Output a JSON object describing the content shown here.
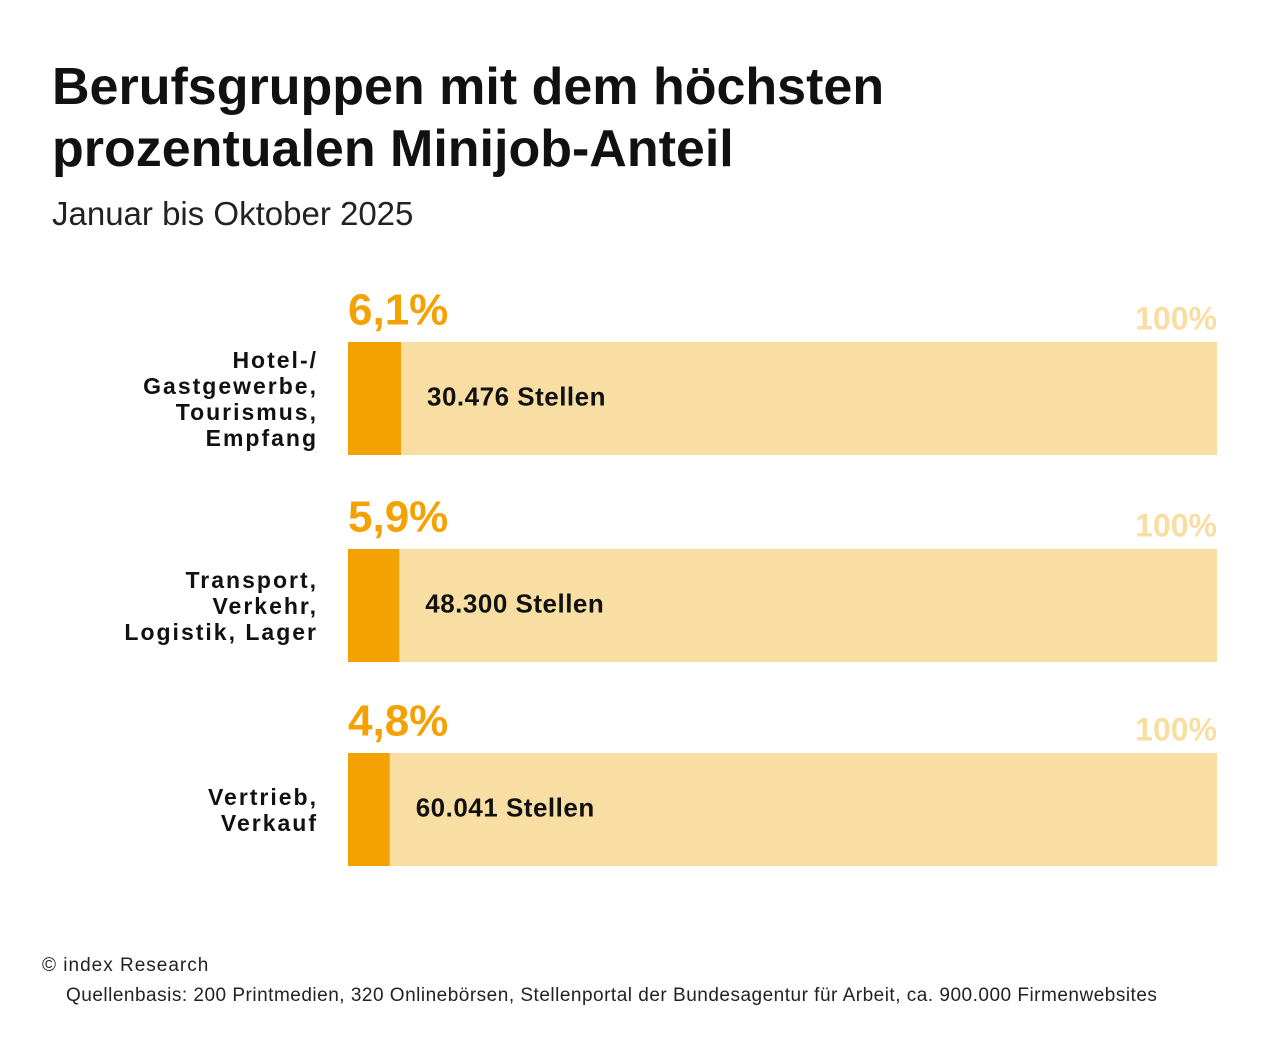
{
  "chart_data": {
    "type": "bar",
    "orientation": "horizontal",
    "title": "Berufsgruppen mit dem höchsten prozentualen Minijob-Anteil",
    "subtitle": "Januar bis Oktober 2025",
    "categories": [
      "Hotel-/\nGastgewerbe,\nTourismus,\nEmpfang",
      "Transport,\nVerkehr,\nLogistik, Lager",
      "Vertrieb,\nVerkauf"
    ],
    "values": [
      6.1,
      5.9,
      4.8
    ],
    "value_labels": [
      "6,1%",
      "5,9%",
      "4,8%"
    ],
    "bar_labels": [
      "30.476 Stellen",
      "48.300 Stellen",
      "60.041 Stellen"
    ],
    "color": "#f4a203",
    "background_color": "#f9dea3",
    "xlim": [
      0,
      100
    ],
    "xticks": [
      {
        "value": 100,
        "label": "100%"
      }
    ],
    "copyright": "© index Research",
    "source": "Quellenbasis: 200 Printmedien, 320 Onlinebörsen, Stellenportal der Bundesagentur für Arbeit, ca. 900.000 Firmenwebsites"
  }
}
